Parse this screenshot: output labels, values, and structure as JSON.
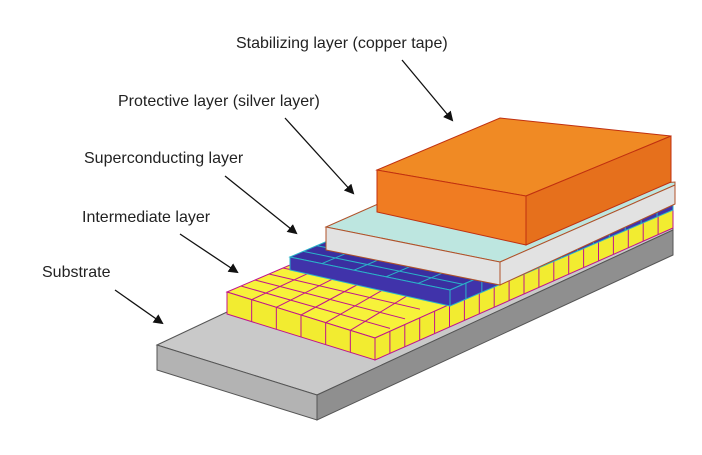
{
  "labels": {
    "stabilizing": "Stabilizing layer (copper tape)",
    "protective": "Protective layer (silver layer)",
    "superconducting": "Superconducting layer",
    "intermediate": "Intermediate layer",
    "substrate": "Substrate"
  },
  "colors": {
    "substrate_top": "#c9c9c9",
    "substrate_front": "#b3b3b3",
    "substrate_side": "#8f8f8f",
    "intermediate_fill": "#f7f23a",
    "intermediate_grid": "#c0148c",
    "superconducting_fill": "#3a2fa0",
    "superconducting_grid": "#2ab3c8",
    "protective_top": "#bde6e0",
    "protective_side": "#e2e2e2",
    "protective_edge": "#b0522a",
    "copper_top": "#f08a24",
    "copper_front": "#f07c22",
    "copper_side": "#e6701c",
    "copper_edge": "#c03010",
    "arrow": "#111111"
  }
}
